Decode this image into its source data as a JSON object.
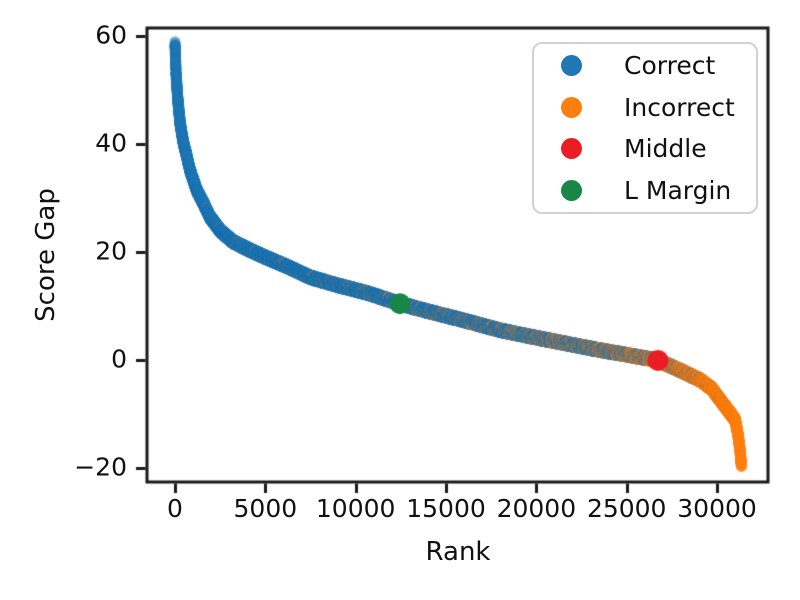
{
  "chart_data": {
    "type": "scatter",
    "title": "",
    "xlabel": "Rank",
    "ylabel": "Score Gap",
    "xlim": [
      -1550,
      32820
    ],
    "ylim": [
      -22.5,
      61.5
    ],
    "xticks": [
      0,
      5000,
      10000,
      15000,
      20000,
      25000,
      30000
    ],
    "yticks": [
      -20,
      0,
      20,
      40,
      60
    ],
    "grid": false,
    "n_points": 31350,
    "curve_anchors": [
      [
        0,
        58.7
      ],
      [
        60,
        53.0
      ],
      [
        150,
        48.5
      ],
      [
        280,
        44.0
      ],
      [
        450,
        40.5
      ],
      [
        650,
        37.8
      ],
      [
        830,
        35.2
      ],
      [
        1200,
        31.5
      ],
      [
        1600,
        28.9
      ],
      [
        1940,
        26.5
      ],
      [
        2500,
        24.0
      ],
      [
        3200,
        22.0
      ],
      [
        4150,
        20.4
      ],
      [
        5000,
        19.1
      ],
      [
        6200,
        17.4
      ],
      [
        7470,
        15.4
      ],
      [
        9000,
        13.9
      ],
      [
        10630,
        12.5
      ],
      [
        12450,
        10.5
      ],
      [
        14000,
        9.1
      ],
      [
        16000,
        7.4
      ],
      [
        17980,
        5.6
      ],
      [
        20000,
        4.2
      ],
      [
        22000,
        2.9
      ],
      [
        23520,
        1.9
      ],
      [
        25000,
        1.05
      ],
      [
        26000,
        0.45
      ],
      [
        26730,
        0.0
      ],
      [
        28000,
        -1.9
      ],
      [
        29060,
        -3.6
      ],
      [
        29700,
        -5.2
      ],
      [
        30170,
        -7.3
      ],
      [
        30600,
        -9.2
      ],
      [
        31000,
        -11.0
      ],
      [
        31150,
        -13.5
      ],
      [
        31250,
        -16.0
      ],
      [
        31320,
        -18.3
      ],
      [
        31350,
        -19.5
      ]
    ],
    "incorrect_fraction_anchors": [
      [
        0,
        0.0
      ],
      [
        2000,
        0.005
      ],
      [
        4000,
        0.02
      ],
      [
        7000,
        0.05
      ],
      [
        10000,
        0.08
      ],
      [
        13000,
        0.12
      ],
      [
        16000,
        0.18
      ],
      [
        19000,
        0.25
      ],
      [
        22000,
        0.33
      ],
      [
        24500,
        0.42
      ],
      [
        26000,
        0.5
      ],
      [
        26730,
        0.56
      ],
      [
        27600,
        0.68
      ],
      [
        28500,
        0.8
      ],
      [
        29200,
        0.89
      ],
      [
        30000,
        0.96
      ],
      [
        30600,
        0.99
      ],
      [
        31350,
        1.0
      ]
    ],
    "highlight_points": [
      {
        "label": "L Margin",
        "rank": 12450,
        "score_gap": 10.5
      },
      {
        "label": "Middle",
        "rank": 26730,
        "score_gap": 0.0
      }
    ],
    "legend": {
      "position": "upper right",
      "entries": [
        {
          "label": "Correct",
          "color": "#1f77b4"
        },
        {
          "label": "Incorrect",
          "color": "#ff7f0e"
        },
        {
          "label": "Middle",
          "color": "#ec1c24"
        },
        {
          "label": "L Margin",
          "color": "#178646"
        }
      ]
    }
  },
  "colors": {
    "correct": "#1f77b4",
    "incorrect": "#ff7f0e",
    "middle": "#ec1c24",
    "l_margin": "#178646",
    "spine": "#1a1a1a",
    "text": "#111111"
  }
}
